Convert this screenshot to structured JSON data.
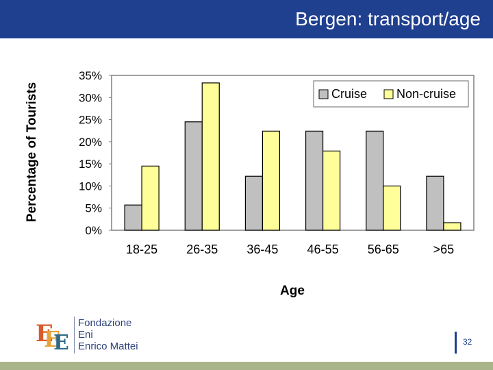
{
  "header": {
    "title": "Bergen: transport/age"
  },
  "chart_data": {
    "type": "bar",
    "title": "",
    "xlabel": "Age",
    "ylabel": "Percentage of Tourists",
    "categories": [
      "18-25",
      "26-35",
      "36-45",
      "46-55",
      "56-65",
      ">65"
    ],
    "series": [
      {
        "name": "Cruise",
        "color": "#c0c0c0",
        "values": [
          5.7,
          24.5,
          12.2,
          22.4,
          22.4,
          12.2
        ]
      },
      {
        "name": "Non-cruise",
        "color": "#ffff99",
        "values": [
          14.5,
          33.3,
          22.4,
          17.9,
          10.0,
          1.7
        ]
      }
    ],
    "ylim": [
      0,
      35
    ],
    "yticks": [
      "0%",
      "5%",
      "10%",
      "15%",
      "20%",
      "25%",
      "30%",
      "35%"
    ],
    "legend_position": "top-right"
  },
  "logo": {
    "line1": "Fondazione",
    "line2": "Eni",
    "line3": "Enrico Mattei"
  },
  "footer": {
    "page_number": "32"
  }
}
